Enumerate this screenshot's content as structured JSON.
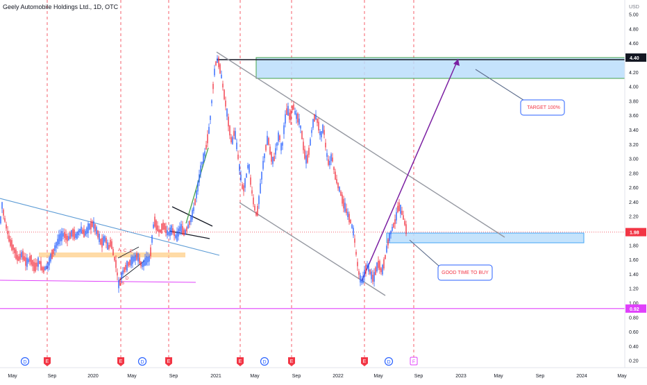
{
  "chart_data": {
    "type": "candlestick",
    "title": "Geely Automobile Holdings Ltd., 1D, OTC",
    "currency": "USD",
    "x_ticks": [
      "May",
      "Sep",
      "2020",
      "May",
      "Sep",
      "2021",
      "May",
      "Sep",
      "2022",
      "May",
      "Sep",
      "2023",
      "May",
      "Sep",
      "2024",
      "May"
    ],
    "y_ticks": [
      "5.00",
      "4.80",
      "4.60",
      "4.40",
      "4.20",
      "4.00",
      "3.80",
      "3.60",
      "3.40",
      "3.20",
      "3.00",
      "2.80",
      "2.60",
      "2.40",
      "2.20",
      "2.00",
      "1.80",
      "1.60",
      "1.40",
      "1.20",
      "1.00",
      "0.80",
      "0.60",
      "0.40",
      "0.20"
    ],
    "ylim": [
      0.12,
      5.16
    ],
    "price_labels": [
      {
        "value": 4.4,
        "text": "4.40",
        "color": "#131722"
      },
      {
        "value": 1.98,
        "text": "1.98",
        "color": "#f23645"
      },
      {
        "value": 0.92,
        "text": "0.92",
        "color": "#e040fb"
      }
    ],
    "price_path": [
      [
        0,
        2.05
      ],
      [
        3,
        2.35
      ],
      [
        8,
        2.1
      ],
      [
        14,
        1.85
      ],
      [
        20,
        1.75
      ],
      [
        26,
        1.6
      ],
      [
        32,
        1.68
      ],
      [
        38,
        1.55
      ],
      [
        44,
        1.62
      ],
      [
        50,
        1.48
      ],
      [
        56,
        1.58
      ],
      [
        62,
        1.45
      ],
      [
        68,
        1.5
      ],
      [
        74,
        1.65
      ],
      [
        80,
        1.78
      ],
      [
        86,
        1.9
      ],
      [
        92,
        1.95
      ],
      [
        98,
        1.88
      ],
      [
        104,
        1.98
      ],
      [
        110,
        1.92
      ],
      [
        116,
        2.02
      ],
      [
        122,
        1.95
      ],
      [
        128,
        2.05
      ],
      [
        134,
        2.1
      ],
      [
        140,
        1.98
      ],
      [
        146,
        1.82
      ],
      [
        152,
        1.9
      ],
      [
        156,
        1.75
      ],
      [
        160,
        1.85
      ],
      [
        164,
        1.65
      ],
      [
        168,
        1.5
      ],
      [
        170,
        1.3
      ],
      [
        172,
        1.22
      ],
      [
        175,
        1.38
      ],
      [
        180,
        1.48
      ],
      [
        186,
        1.55
      ],
      [
        192,
        1.6
      ],
      [
        198,
        1.65
      ],
      [
        204,
        1.52
      ],
      [
        210,
        1.58
      ],
      [
        216,
        1.62
      ],
      [
        222,
        2.15
      ],
      [
        226,
        2.05
      ],
      [
        230,
        1.98
      ],
      [
        236,
        2.08
      ],
      [
        242,
        1.95
      ],
      [
        248,
        2.02
      ],
      [
        254,
        1.9
      ],
      [
        260,
        2.05
      ],
      [
        266,
        1.96
      ],
      [
        272,
        2.08
      ],
      [
        278,
        2.25
      ],
      [
        284,
        2.55
      ],
      [
        290,
        2.9
      ],
      [
        296,
        3.1
      ],
      [
        302,
        3.45
      ],
      [
        306,
        3.9
      ],
      [
        310,
        4.3
      ],
      [
        314,
        4.38
      ],
      [
        318,
        4.2
      ],
      [
        322,
        3.95
      ],
      [
        326,
        3.7
      ],
      [
        330,
        3.45
      ],
      [
        334,
        3.2
      ],
      [
        338,
        3.4
      ],
      [
        342,
        3.1
      ],
      [
        346,
        2.8
      ],
      [
        350,
        2.55
      ],
      [
        354,
        2.7
      ],
      [
        358,
        2.95
      ],
      [
        362,
        2.6
      ],
      [
        366,
        2.35
      ],
      [
        370,
        2.2
      ],
      [
        374,
        2.5
      ],
      [
        378,
        2.85
      ],
      [
        382,
        3.1
      ],
      [
        386,
        3.3
      ],
      [
        390,
        3.05
      ],
      [
        394,
        2.95
      ],
      [
        398,
        3.15
      ],
      [
        402,
        3.35
      ],
      [
        406,
        3.1
      ],
      [
        410,
        3.5
      ],
      [
        414,
        3.7
      ],
      [
        418,
        3.55
      ],
      [
        422,
        3.75
      ],
      [
        426,
        3.6
      ],
      [
        430,
        3.55
      ],
      [
        434,
        3.4
      ],
      [
        438,
        3.1
      ],
      [
        442,
        2.95
      ],
      [
        446,
        3.15
      ],
      [
        450,
        3.45
      ],
      [
        454,
        3.6
      ],
      [
        458,
        3.5
      ],
      [
        462,
        3.3
      ],
      [
        466,
        3.45
      ],
      [
        470,
        3.1
      ],
      [
        474,
        2.9
      ],
      [
        478,
        3.05
      ],
      [
        482,
        2.8
      ],
      [
        486,
        2.65
      ],
      [
        490,
        2.55
      ],
      [
        494,
        2.4
      ],
      [
        498,
        2.3
      ],
      [
        502,
        2.2
      ],
      [
        506,
        2.1
      ],
      [
        510,
        1.95
      ],
      [
        514,
        1.6
      ],
      [
        518,
        1.35
      ],
      [
        522,
        1.28
      ],
      [
        526,
        1.45
      ],
      [
        530,
        1.52
      ],
      [
        534,
        1.4
      ],
      [
        538,
        1.32
      ],
      [
        542,
        1.48
      ],
      [
        546,
        1.55
      ],
      [
        550,
        1.42
      ],
      [
        554,
        1.58
      ],
      [
        558,
        1.8
      ],
      [
        562,
        1.95
      ],
      [
        566,
        2.05
      ],
      [
        570,
        2.15
      ],
      [
        574,
        2.35
      ],
      [
        578,
        2.28
      ],
      [
        582,
        2.15
      ],
      [
        586,
        1.98
      ]
    ],
    "annotations": [
      {
        "kind": "text",
        "text": "TARGET 100%",
        "x": 783,
        "y": 155,
        "color": "#f23645"
      },
      {
        "kind": "text",
        "text": "GOOD TIME TO BUY",
        "x": 670,
        "y": 393,
        "color": "#f23645"
      },
      {
        "kind": "text",
        "text": "A",
        "x": 172,
        "y": 360,
        "color": "#f23645"
      },
      {
        "kind": "text",
        "text": "C",
        "x": 180,
        "y": 361,
        "color": "#f23645"
      },
      {
        "kind": "text",
        "text": "E",
        "x": 189,
        "y": 362,
        "color": "#f23645"
      },
      {
        "kind": "text",
        "text": "D",
        "x": 183,
        "y": 401,
        "color": "#f23645"
      },
      {
        "kind": "text",
        "text": "B",
        "x": 177,
        "y": 408,
        "color": "#f23645"
      }
    ],
    "event_markers": [
      {
        "label": "D",
        "x": 36,
        "type": "dividend"
      },
      {
        "label": "E",
        "x": 68,
        "type": "earnings"
      },
      {
        "label": "E",
        "x": 174,
        "type": "earnings"
      },
      {
        "label": "D",
        "x": 205,
        "type": "dividend"
      },
      {
        "label": "E",
        "x": 243,
        "type": "earnings"
      },
      {
        "label": "E",
        "x": 346,
        "type": "earnings"
      },
      {
        "label": "D",
        "x": 381,
        "type": "dividend"
      },
      {
        "label": "E",
        "x": 420,
        "type": "earnings"
      },
      {
        "label": "E",
        "x": 525,
        "type": "earnings"
      },
      {
        "label": "D",
        "x": 560,
        "type": "dividend"
      },
      {
        "label": "F",
        "x": 596,
        "type": "future"
      }
    ]
  }
}
